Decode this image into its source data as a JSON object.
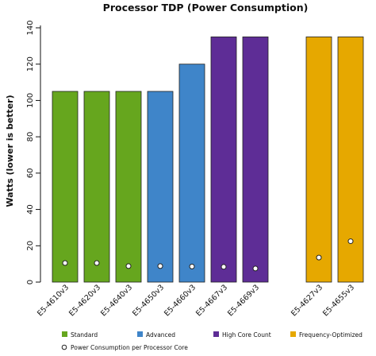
{
  "chart_data": {
    "type": "bar",
    "title": "Processor TDP (Power Consumption)",
    "ylabel": "Watts (lower is better)",
    "xlabel": "",
    "ylim": [
      0,
      140
    ],
    "yticks": [
      0,
      20,
      40,
      60,
      80,
      100,
      120,
      140
    ],
    "grid": false,
    "legend_position": "bottom",
    "groups": [
      {
        "name": "Standard",
        "color": "#66a61e"
      },
      {
        "name": "Advanced",
        "color": "#3f85c9"
      },
      {
        "name": "High Core Count",
        "color": "#5e2d96"
      },
      {
        "name": "Frequency-Optimized",
        "color": "#e6a800"
      }
    ],
    "categories": [
      "E5-4610v3",
      "E5-4620v3",
      "E5-4640v3",
      "E5-4650v3",
      "E5-4660v3",
      "E5-4667v3",
      "E5-4669v3",
      "E5-4627v3",
      "E5-4655v3"
    ],
    "category_group": [
      0,
      0,
      0,
      1,
      1,
      2,
      2,
      3,
      3
    ],
    "values": [
      105,
      105,
      105,
      105,
      120,
      135,
      135,
      135,
      135
    ],
    "series": [
      {
        "name": "Processor TDP",
        "values": [
          105,
          105,
          105,
          105,
          120,
          135,
          135,
          135,
          135
        ]
      },
      {
        "name": "Power Consumption per Processor Core",
        "values": [
          10.5,
          10.5,
          8.8,
          8.8,
          8.6,
          8.4,
          7.5,
          13.5,
          22.5
        ]
      }
    ]
  }
}
